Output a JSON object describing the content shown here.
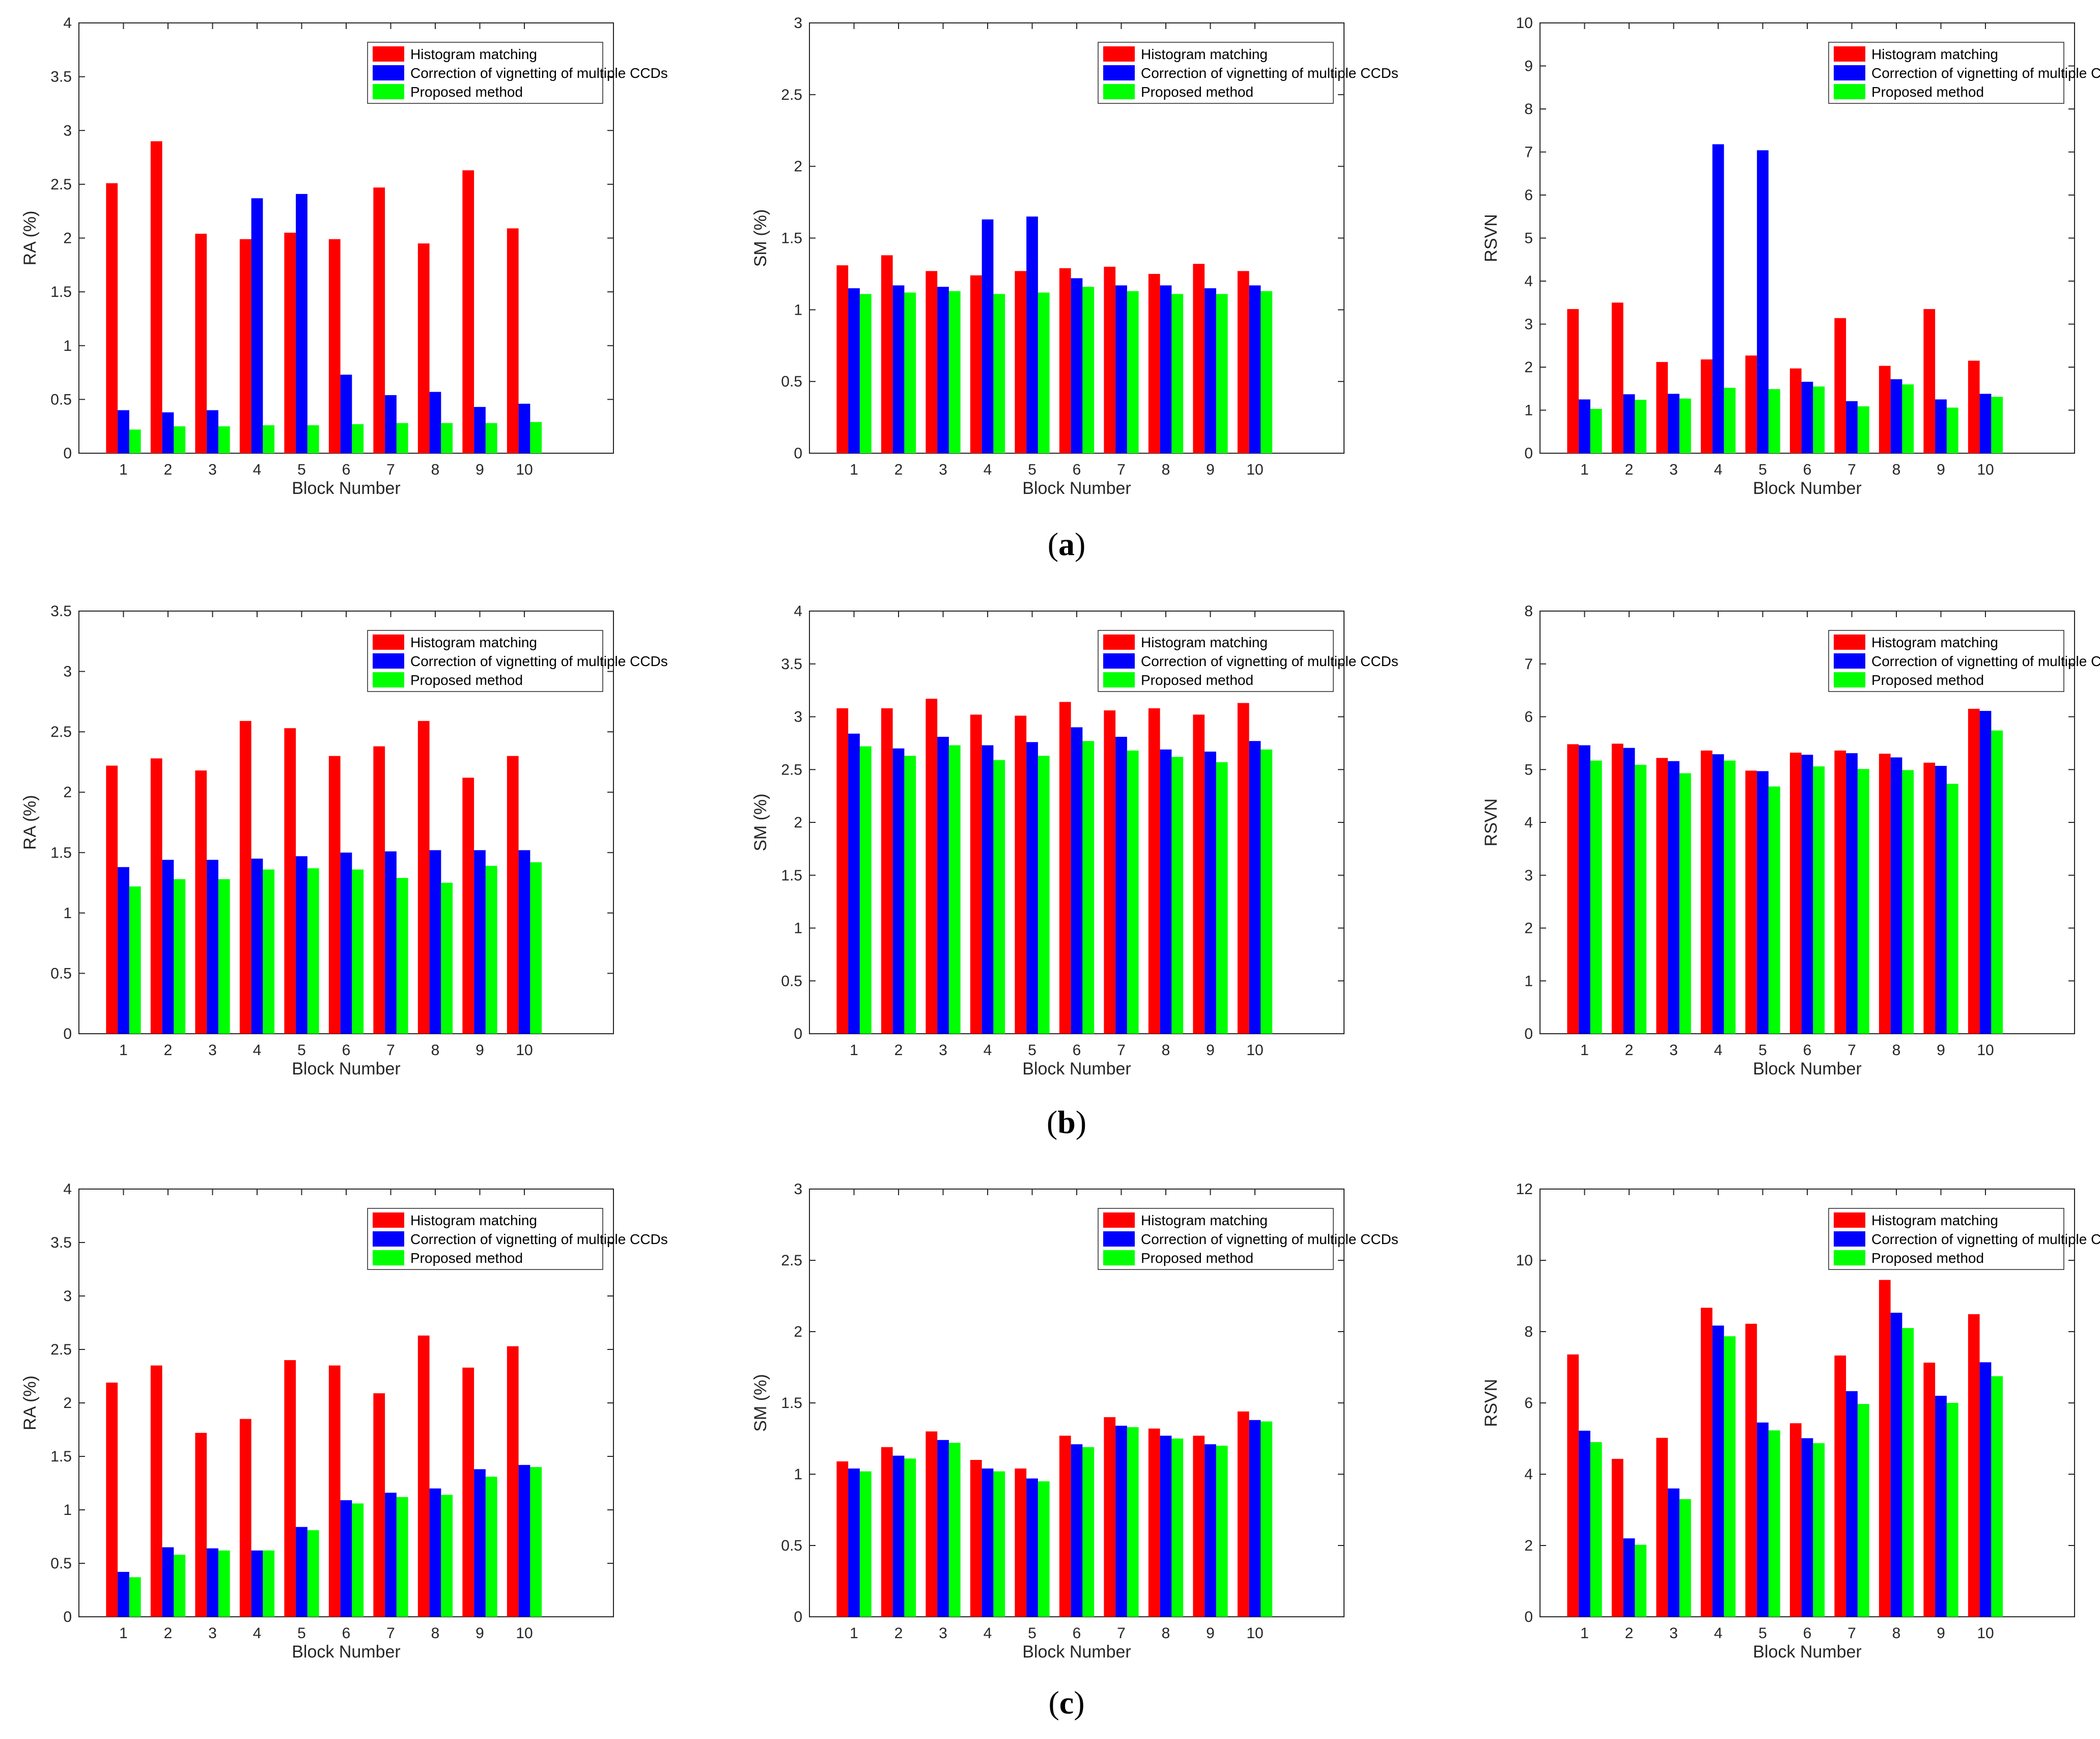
{
  "colors": {
    "histogram": "#ff0000",
    "vignetting": "#0000ff",
    "proposed": "#00ff00"
  },
  "legend": {
    "histogram": "Histogram matching",
    "vignetting": "Correction of vignetting of multiple CCDs",
    "proposed": "Proposed method"
  },
  "panels": [
    {
      "open": "(",
      "letter": "a",
      "close": ")"
    },
    {
      "open": "(",
      "letter": "b",
      "close": ")"
    },
    {
      "open": "(",
      "letter": "c",
      "close": ")"
    }
  ],
  "chart_data": [
    {
      "type": "bar",
      "xlabel": "Block Number",
      "ylabel": "RA (%)",
      "ylim": [
        0,
        4
      ],
      "yticks": [
        "0",
        "0.5",
        "1",
        "1.5",
        "2",
        "2.5",
        "3",
        "3.5",
        "4"
      ],
      "categories": [
        "1",
        "2",
        "3",
        "4",
        "5",
        "6",
        "7",
        "8",
        "9",
        "10"
      ],
      "series": [
        {
          "name": "Histogram matching",
          "values": [
            2.51,
            2.9,
            2.04,
            1.99,
            2.05,
            1.99,
            2.47,
            1.95,
            2.63,
            2.09
          ]
        },
        {
          "name": "Correction of vignetting of multiple CCDs",
          "values": [
            0.4,
            0.38,
            0.4,
            2.37,
            2.41,
            0.73,
            0.54,
            0.57,
            0.43,
            0.46
          ]
        },
        {
          "name": "Proposed method",
          "values": [
            0.22,
            0.25,
            0.25,
            0.26,
            0.26,
            0.27,
            0.28,
            0.28,
            0.28,
            0.29
          ]
        }
      ]
    },
    {
      "type": "bar",
      "xlabel": "Block Number",
      "ylabel": "SM (%)",
      "ylim": [
        0,
        3
      ],
      "yticks": [
        "0",
        "0.5",
        "1",
        "1.5",
        "2",
        "2.5",
        "3"
      ],
      "categories": [
        "1",
        "2",
        "3",
        "4",
        "5",
        "6",
        "7",
        "8",
        "9",
        "10"
      ],
      "series": [
        {
          "name": "Histogram matching",
          "values": [
            1.31,
            1.38,
            1.27,
            1.24,
            1.27,
            1.29,
            1.3,
            1.25,
            1.32,
            1.27
          ]
        },
        {
          "name": "Correction of vignetting of multiple CCDs",
          "values": [
            1.15,
            1.17,
            1.16,
            1.63,
            1.65,
            1.22,
            1.17,
            1.17,
            1.15,
            1.17
          ]
        },
        {
          "name": "Proposed method",
          "values": [
            1.11,
            1.12,
            1.13,
            1.11,
            1.12,
            1.16,
            1.13,
            1.11,
            1.11,
            1.13
          ]
        }
      ]
    },
    {
      "type": "bar",
      "xlabel": "Block Number",
      "ylabel": "RSVN",
      "ylim": [
        0,
        10
      ],
      "yticks": [
        "0",
        "1",
        "2",
        "3",
        "4",
        "5",
        "6",
        "7",
        "8",
        "9",
        "10"
      ],
      "categories": [
        "1",
        "2",
        "3",
        "4",
        "5",
        "6",
        "7",
        "8",
        "9",
        "10"
      ],
      "series": [
        {
          "name": "Histogram matching",
          "values": [
            3.35,
            3.5,
            2.12,
            2.18,
            2.27,
            1.97,
            3.14,
            2.03,
            3.35,
            2.15
          ]
        },
        {
          "name": "Correction of vignetting of multiple CCDs",
          "values": [
            1.25,
            1.37,
            1.38,
            7.18,
            7.04,
            1.66,
            1.21,
            1.72,
            1.25,
            1.38
          ]
        },
        {
          "name": "Proposed method",
          "values": [
            1.03,
            1.24,
            1.27,
            1.52,
            1.49,
            1.55,
            1.09,
            1.6,
            1.06,
            1.31
          ]
        }
      ]
    },
    {
      "type": "bar",
      "xlabel": "Block Number",
      "ylabel": "RA (%)",
      "ylim": [
        0,
        3.5
      ],
      "yticks": [
        "0",
        "0.5",
        "1",
        "1.5",
        "2",
        "2.5",
        "3",
        "3.5"
      ],
      "categories": [
        "1",
        "2",
        "3",
        "4",
        "5",
        "6",
        "7",
        "8",
        "9",
        "10"
      ],
      "series": [
        {
          "name": "Histogram matching",
          "values": [
            2.22,
            2.28,
            2.18,
            2.59,
            2.53,
            2.3,
            2.38,
            2.59,
            2.12,
            2.3
          ]
        },
        {
          "name": "Correction of vignetting of multiple CCDs",
          "values": [
            1.38,
            1.44,
            1.44,
            1.45,
            1.47,
            1.5,
            1.51,
            1.52,
            1.52,
            1.52
          ]
        },
        {
          "name": "Proposed method",
          "values": [
            1.22,
            1.28,
            1.28,
            1.36,
            1.37,
            1.36,
            1.29,
            1.25,
            1.39,
            1.42
          ]
        }
      ]
    },
    {
      "type": "bar",
      "xlabel": "Block Number",
      "ylabel": "SM (%)",
      "ylim": [
        0,
        4
      ],
      "yticks": [
        "0",
        "0.5",
        "1",
        "1.5",
        "2",
        "2.5",
        "3",
        "3.5",
        "4"
      ],
      "categories": [
        "1",
        "2",
        "3",
        "4",
        "5",
        "6",
        "7",
        "8",
        "9",
        "10"
      ],
      "series": [
        {
          "name": "Histogram matching",
          "values": [
            3.08,
            3.08,
            3.17,
            3.02,
            3.01,
            3.14,
            3.06,
            3.08,
            3.02,
            3.13
          ]
        },
        {
          "name": "Correction of vignetting of multiple CCDs",
          "values": [
            2.84,
            2.7,
            2.81,
            2.73,
            2.76,
            2.9,
            2.81,
            2.69,
            2.67,
            2.77
          ]
        },
        {
          "name": "Proposed method",
          "values": [
            2.72,
            2.63,
            2.73,
            2.59,
            2.63,
            2.77,
            2.68,
            2.62,
            2.57,
            2.69
          ]
        }
      ]
    },
    {
      "type": "bar",
      "xlabel": "Block Number",
      "ylabel": "RSVN",
      "ylim": [
        0,
        8
      ],
      "yticks": [
        "0",
        "1",
        "2",
        "3",
        "4",
        "5",
        "6",
        "7",
        "8"
      ],
      "categories": [
        "1",
        "2",
        "3",
        "4",
        "5",
        "6",
        "7",
        "8",
        "9",
        "10"
      ],
      "series": [
        {
          "name": "Histogram matching",
          "values": [
            5.48,
            5.49,
            5.22,
            5.36,
            4.98,
            5.32,
            5.36,
            5.3,
            5.13,
            6.15
          ]
        },
        {
          "name": "Correction of vignetting of multiple CCDs",
          "values": [
            5.46,
            5.41,
            5.16,
            5.29,
            4.97,
            5.28,
            5.31,
            5.23,
            5.07,
            6.11
          ]
        },
        {
          "name": "Proposed method",
          "values": [
            5.17,
            5.09,
            4.93,
            5.17,
            4.68,
            5.06,
            5.01,
            4.99,
            4.73,
            5.74
          ]
        }
      ]
    },
    {
      "type": "bar",
      "xlabel": "Block Number",
      "ylabel": "RA (%)",
      "ylim": [
        0,
        4
      ],
      "yticks": [
        "0",
        "0.5",
        "1",
        "1.5",
        "2",
        "2.5",
        "3",
        "3.5",
        "4"
      ],
      "categories": [
        "1",
        "2",
        "3",
        "4",
        "5",
        "6",
        "7",
        "8",
        "9",
        "10"
      ],
      "series": [
        {
          "name": "Histogram matching",
          "values": [
            2.19,
            2.35,
            1.72,
            1.85,
            2.4,
            2.35,
            2.09,
            2.63,
            2.33,
            2.53
          ]
        },
        {
          "name": "Correction of vignetting of multiple CCDs",
          "values": [
            0.42,
            0.65,
            0.64,
            0.62,
            0.84,
            1.09,
            1.16,
            1.2,
            1.38,
            1.42
          ]
        },
        {
          "name": "Proposed method",
          "values": [
            0.37,
            0.58,
            0.62,
            0.62,
            0.81,
            1.06,
            1.12,
            1.14,
            1.31,
            1.4
          ]
        }
      ]
    },
    {
      "type": "bar",
      "xlabel": "Block Number",
      "ylabel": "SM (%)",
      "ylim": [
        0,
        3
      ],
      "yticks": [
        "0",
        "0.5",
        "1",
        "1.5",
        "2",
        "2.5",
        "3"
      ],
      "categories": [
        "1",
        "2",
        "3",
        "4",
        "5",
        "6",
        "7",
        "8",
        "9",
        "10"
      ],
      "series": [
        {
          "name": "Histogram matching",
          "values": [
            1.09,
            1.19,
            1.3,
            1.1,
            1.04,
            1.27,
            1.4,
            1.32,
            1.27,
            1.44
          ]
        },
        {
          "name": "Correction of vignetting of multiple CCDs",
          "values": [
            1.04,
            1.13,
            1.24,
            1.04,
            0.97,
            1.21,
            1.34,
            1.27,
            1.21,
            1.38
          ]
        },
        {
          "name": "Proposed method",
          "values": [
            1.02,
            1.11,
            1.22,
            1.02,
            0.95,
            1.19,
            1.33,
            1.25,
            1.2,
            1.37
          ]
        }
      ]
    },
    {
      "type": "bar",
      "xlabel": "Block Number",
      "ylabel": "RSVN",
      "ylim": [
        0,
        12
      ],
      "yticks": [
        "0",
        "2",
        "4",
        "6",
        "8",
        "10",
        "12"
      ],
      "categories": [
        "1",
        "2",
        "3",
        "4",
        "5",
        "6",
        "7",
        "8",
        "9",
        "10"
      ],
      "series": [
        {
          "name": "Histogram matching",
          "values": [
            7.36,
            4.43,
            5.02,
            8.67,
            8.22,
            5.43,
            7.33,
            9.45,
            7.13,
            8.49
          ]
        },
        {
          "name": "Correction of vignetting of multiple CCDs",
          "values": [
            5.22,
            2.2,
            3.6,
            8.17,
            5.45,
            5.01,
            6.33,
            8.53,
            6.2,
            7.14
          ]
        },
        {
          "name": "Proposed method",
          "values": [
            4.9,
            2.02,
            3.3,
            7.87,
            5.23,
            4.87,
            5.97,
            8.1,
            6.0,
            6.75
          ]
        }
      ]
    }
  ]
}
